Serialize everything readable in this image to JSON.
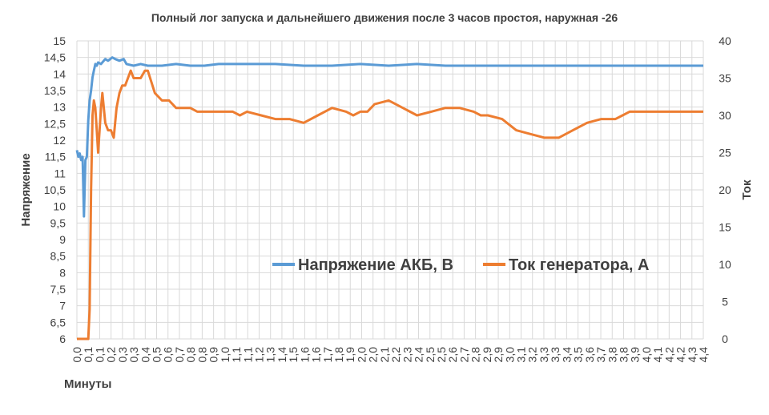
{
  "chart_data": {
    "type": "line",
    "title": "Полный лог запуска и дальнейшего движения после 3 часов простоя, наружная -26",
    "xlabel": "Минуты",
    "ylabel_left": "Напряжение",
    "ylabel_right": "Ток",
    "xlim": [
      0,
      4.42
    ],
    "ylim_left": [
      6,
      15
    ],
    "ylim_right": [
      0,
      40
    ],
    "x_ticks": [
      "0,0",
      "0,1",
      "0,1",
      "0,2",
      "0,3",
      "0,3",
      "0,4",
      "0,5",
      "0,6",
      "0,7",
      "0,8",
      "0,8",
      "0,9",
      "1,0",
      "1,1",
      "1,1",
      "1,2",
      "1,3",
      "1,4",
      "1,5",
      "1,6",
      "1,6",
      "1,7",
      "1,8",
      "1,9",
      "2,0",
      "2,0",
      "2,1",
      "2,2",
      "2,3",
      "2,4",
      "2,5",
      "2,5",
      "2,6",
      "2,7",
      "2,8",
      "2,9",
      "2,9",
      "3,0",
      "3,1",
      "3,2",
      "3,3",
      "3,3",
      "3,4",
      "3,5",
      "3,6",
      "3,7",
      "3,8",
      "3,8",
      "3,9",
      "4,0",
      "4,1",
      "4,2",
      "4,2",
      "4,3",
      "4,4"
    ],
    "y_ticks_left": [
      "6",
      "6,5",
      "7",
      "7,5",
      "8",
      "8,5",
      "9",
      "9,5",
      "10",
      "10,5",
      "11",
      "11,5",
      "12",
      "12,5",
      "13",
      "13,5",
      "14",
      "14,5",
      "15"
    ],
    "y_ticks_right": [
      "0",
      "5",
      "10",
      "15",
      "20",
      "25",
      "30",
      "35",
      "40"
    ],
    "grid": true,
    "legend_position": "center-right",
    "series": [
      {
        "name": "Напряжение АКБ, В",
        "axis": "left",
        "color": "#5b9bd5",
        "x": [
          0,
          0.01,
          0.02,
          0.03,
          0.04,
          0.05,
          0.06,
          0.07,
          0.08,
          0.09,
          0.1,
          0.11,
          0.12,
          0.13,
          0.14,
          0.15,
          0.17,
          0.2,
          0.22,
          0.25,
          0.27,
          0.3,
          0.33,
          0.35,
          0.4,
          0.45,
          0.5,
          0.6,
          0.7,
          0.8,
          0.9,
          1.0,
          1.1,
          1.2,
          1.4,
          1.6,
          1.8,
          2.0,
          2.2,
          2.4,
          2.6,
          2.8,
          3.0,
          3.2,
          3.4,
          3.6,
          3.8,
          4.0,
          4.2,
          4.35,
          4.42
        ],
        "y": [
          11.7,
          11.5,
          11.6,
          11.4,
          11.5,
          9.7,
          11.4,
          11.5,
          12.6,
          13.2,
          13.5,
          13.9,
          14.1,
          14.3,
          14.25,
          14.35,
          14.3,
          14.45,
          14.4,
          14.5,
          14.45,
          14.4,
          14.45,
          14.3,
          14.25,
          14.3,
          14.25,
          14.25,
          14.3,
          14.25,
          14.25,
          14.3,
          14.3,
          14.3,
          14.3,
          14.25,
          14.25,
          14.3,
          14.25,
          14.3,
          14.25,
          14.25,
          14.25,
          14.25,
          14.25,
          14.25,
          14.25,
          14.25,
          14.25,
          14.25,
          14.25
        ]
      },
      {
        "name": "Ток генератора, А",
        "axis": "right",
        "color": "#ed7d31",
        "x": [
          0,
          0.05,
          0.08,
          0.09,
          0.1,
          0.11,
          0.12,
          0.13,
          0.14,
          0.15,
          0.17,
          0.18,
          0.2,
          0.22,
          0.24,
          0.26,
          0.28,
          0.3,
          0.32,
          0.34,
          0.36,
          0.38,
          0.4,
          0.42,
          0.45,
          0.48,
          0.5,
          0.55,
          0.6,
          0.65,
          0.7,
          0.72,
          0.75,
          0.8,
          0.85,
          0.9,
          0.95,
          1.0,
          1.05,
          1.1,
          1.15,
          1.2,
          1.3,
          1.4,
          1.5,
          1.6,
          1.7,
          1.8,
          1.9,
          1.95,
          2.0,
          2.05,
          2.1,
          2.2,
          2.3,
          2.4,
          2.5,
          2.6,
          2.7,
          2.8,
          2.85,
          2.9,
          3.0,
          3.1,
          3.2,
          3.3,
          3.4,
          3.5,
          3.6,
          3.7,
          3.8,
          3.85,
          3.9,
          3.95,
          4.0,
          4.1,
          4.15,
          4.2,
          4.3,
          4.4,
          4.42
        ],
        "y": [
          0,
          0,
          0,
          4,
          20,
          30,
          32,
          31,
          28,
          25,
          31,
          33,
          29,
          28,
          28,
          27,
          31,
          33,
          34,
          34,
          35,
          36,
          35,
          35,
          35,
          36,
          36,
          33,
          32,
          32,
          31,
          31,
          31,
          31,
          30.5,
          30.5,
          30.5,
          30.5,
          30.5,
          30.5,
          30,
          30.5,
          30,
          29.5,
          29.5,
          29,
          30,
          31,
          30.5,
          30,
          30.5,
          30.5,
          31.5,
          32,
          31,
          30,
          30.5,
          31,
          31,
          30.5,
          30,
          30,
          29.5,
          28,
          27.5,
          27,
          27,
          28,
          29,
          29.5,
          29.5,
          30,
          30.5,
          30.5,
          30.5,
          30.5,
          30.5,
          30.5,
          30.5,
          30.5,
          30.5
        ]
      }
    ]
  }
}
